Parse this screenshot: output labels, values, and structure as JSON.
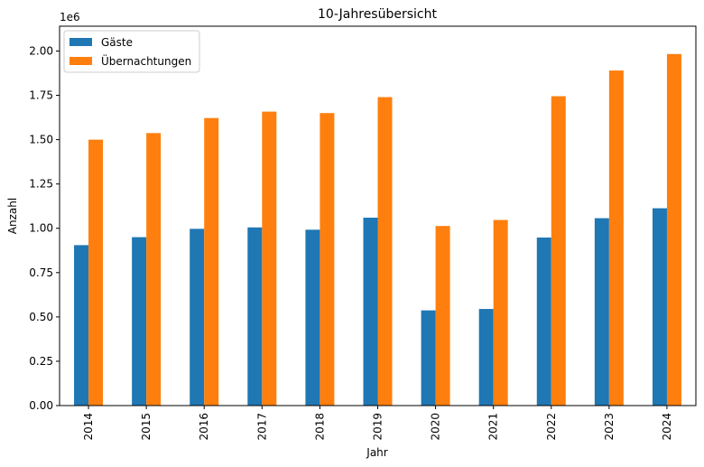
{
  "chart_data": {
    "type": "bar",
    "title": "10-Jahresübersicht",
    "xlabel": "Jahr",
    "ylabel": "Anzahl",
    "y_scale_label": "1e6",
    "categories": [
      "2014",
      "2015",
      "2016",
      "2017",
      "2018",
      "2019",
      "2020",
      "2021",
      "2022",
      "2023",
      "2024"
    ],
    "series": [
      {
        "name": "Gäste",
        "color": "#1f77b4",
        "values": [
          905000,
          950000,
          997000,
          1005000,
          992000,
          1060000,
          537000,
          545000,
          948000,
          1057000,
          1113000
        ]
      },
      {
        "name": "Übernachtungen",
        "color": "#ff7f0e",
        "values": [
          1500000,
          1537000,
          1622000,
          1658000,
          1650000,
          1740000,
          1013000,
          1047000,
          1745000,
          1890000,
          1983000
        ]
      }
    ],
    "ylim": [
      0,
      2140000.0
    ],
    "yticks": [
      0,
      250000,
      500000,
      750000,
      1000000,
      1250000,
      1500000,
      1750000,
      2000000
    ],
    "ytick_labels": [
      "0.00",
      "0.25",
      "0.50",
      "0.75",
      "1.00",
      "1.25",
      "1.50",
      "1.75",
      "2.00"
    ],
    "xtick_rotation": "vertical",
    "legend_position": "upper left",
    "grid": false
  }
}
